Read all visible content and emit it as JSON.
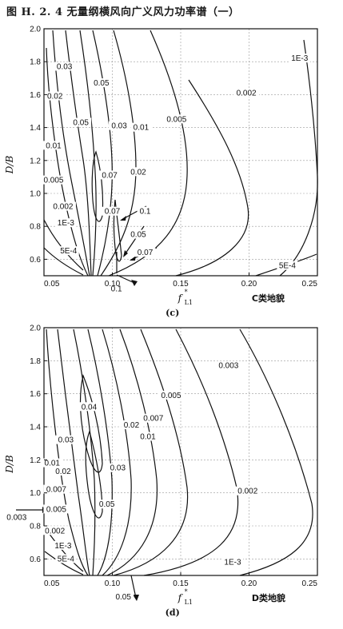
{
  "caption": "图 H. 2. 4   无量纲横风向广义风力功率谱（一）",
  "chart_data": [
    {
      "type": "contour",
      "panel_label": "(c)",
      "terrain": "C类地貌",
      "xlabel": "f",
      "xlabel_sub": "L1",
      "xlabel_sup": "*",
      "ylabel": "D/B",
      "xlim": [
        0.05,
        0.25
      ],
      "ylim": [
        0.5,
        2.0
      ],
      "xticks": [
        "0.05",
        "0.10",
        "0.15",
        "0.20",
        "0.25"
      ],
      "yticks": [
        "0.6",
        "0.8",
        "1.0",
        "1.2",
        "1.4",
        "1.6",
        "1.8",
        "2.0"
      ],
      "grid": true,
      "contour_labels": [
        {
          "text": "0.03",
          "x": 0.065,
          "y": 1.76
        },
        {
          "text": "0.02",
          "x": 0.058,
          "y": 1.58
        },
        {
          "text": "0.05",
          "x": 0.092,
          "y": 1.66
        },
        {
          "text": "0.05",
          "x": 0.077,
          "y": 1.42
        },
        {
          "text": "0.03",
          "x": 0.105,
          "y": 1.4
        },
        {
          "text": "0.01",
          "x": 0.121,
          "y": 1.39
        },
        {
          "text": "0.005",
          "x": 0.147,
          "y": 1.44
        },
        {
          "text": "0.002",
          "x": 0.198,
          "y": 1.6
        },
        {
          "text": "1E-3",
          "x": 0.237,
          "y": 1.81
        },
        {
          "text": "0.01",
          "x": 0.057,
          "y": 1.28
        },
        {
          "text": "0.005",
          "x": 0.057,
          "y": 1.07
        },
        {
          "text": "0.07",
          "x": 0.098,
          "y": 1.1
        },
        {
          "text": "0.02",
          "x": 0.119,
          "y": 1.12
        },
        {
          "text": "0.002",
          "x": 0.064,
          "y": 0.91
        },
        {
          "text": "0.07",
          "x": 0.1,
          "y": 0.88
        },
        {
          "text": "1E-3",
          "x": 0.066,
          "y": 0.81
        },
        {
          "text": "0.1",
          "x": 0.124,
          "y": 0.88
        },
        {
          "text": "0.05",
          "x": 0.119,
          "y": 0.74
        },
        {
          "text": "5E-4",
          "x": 0.068,
          "y": 0.64
        },
        {
          "text": "0.07",
          "x": 0.124,
          "y": 0.63
        },
        {
          "text": "5E-4",
          "x": 0.228,
          "y": 0.55
        },
        {
          "text": "0.1",
          "x": 0.103,
          "y": 0.41
        }
      ],
      "contour_levels": [
        "5E-4",
        "1E-3",
        "0.002",
        "0.005",
        "0.01",
        "0.02",
        "0.03",
        "0.05",
        "0.07",
        "0.1"
      ]
    },
    {
      "type": "contour",
      "panel_label": "(d)",
      "terrain": "D类地貌",
      "xlabel": "f",
      "xlabel_sub": "L1",
      "xlabel_sup": "*",
      "ylabel": "D/B",
      "xlim": [
        0.05,
        0.25
      ],
      "ylim": [
        0.5,
        2.0
      ],
      "xticks": [
        "0.05",
        "0.10",
        "0.15",
        "0.20",
        "0.25"
      ],
      "yticks": [
        "0.6",
        "0.8",
        "1.0",
        "1.2",
        "1.4",
        "1.6",
        "1.8",
        "2.0"
      ],
      "grid": true,
      "contour_labels": [
        {
          "text": "0.003",
          "x": 0.185,
          "y": 1.76
        },
        {
          "text": "0.04",
          "x": 0.083,
          "y": 1.51
        },
        {
          "text": "0.02",
          "x": 0.114,
          "y": 1.4
        },
        {
          "text": "0.007",
          "x": 0.13,
          "y": 1.44
        },
        {
          "text": "0.005",
          "x": 0.143,
          "y": 1.58
        },
        {
          "text": "0.01",
          "x": 0.126,
          "y": 1.33
        },
        {
          "text": "0.03",
          "x": 0.066,
          "y": 1.31
        },
        {
          "text": "0.01",
          "x": 0.056,
          "y": 1.17
        },
        {
          "text": "0.02",
          "x": 0.064,
          "y": 1.12
        },
        {
          "text": "0.03",
          "x": 0.104,
          "y": 1.14
        },
        {
          "text": "0.007",
          "x": 0.059,
          "y": 1.01
        },
        {
          "text": "0.05",
          "x": 0.096,
          "y": 0.92
        },
        {
          "text": "0.005",
          "x": 0.059,
          "y": 0.89
        },
        {
          "text": "0.002",
          "x": 0.199,
          "y": 1.0
        },
        {
          "text": "0.003",
          "x": 0.03,
          "y": 0.84
        },
        {
          "text": "0.002",
          "x": 0.058,
          "y": 0.76
        },
        {
          "text": "1E-3",
          "x": 0.064,
          "y": 0.67
        },
        {
          "text": "5E-4",
          "x": 0.066,
          "y": 0.59
        },
        {
          "text": "1E-3",
          "x": 0.188,
          "y": 0.57
        },
        {
          "text": "0.05",
          "x": 0.108,
          "y": 0.36
        }
      ],
      "contour_levels": [
        "5E-4",
        "1E-3",
        "0.002",
        "0.003",
        "0.005",
        "0.007",
        "0.01",
        "0.02",
        "0.03",
        "0.04",
        "0.05"
      ]
    }
  ]
}
